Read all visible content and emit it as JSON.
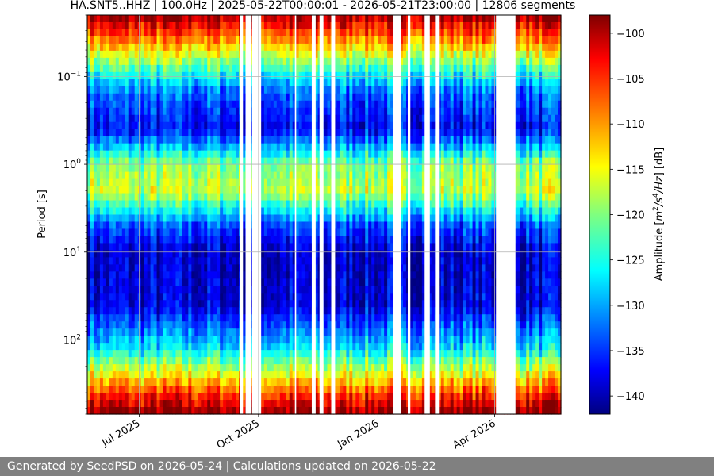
{
  "chart_data": {
    "type": "heatmap",
    "title": "HA.SNT5..HHZ | 100.0Hz | 2025-05-22T00:00:01 - 2026-05-21T23:00:00 | 12806 segments",
    "xlabel": "",
    "ylabel": "Period [s]",
    "x_range": [
      "2025-05-22",
      "2026-05-21"
    ],
    "x_ticks": [
      {
        "date": "2025-07-01",
        "label": "Jul 2025"
      },
      {
        "date": "2025-10-01",
        "label": "Oct 2025"
      },
      {
        "date": "2026-01-01",
        "label": "Jan 2026"
      },
      {
        "date": "2026-04-01",
        "label": "Apr 2026"
      }
    ],
    "y_scale": "log",
    "y_inverted": true,
    "y_range": [
      0.02,
      700
    ],
    "y_ticks": [
      {
        "value": 0.1,
        "base": "10",
        "exp": "−1"
      },
      {
        "value": 1,
        "base": "10",
        "exp": "0"
      },
      {
        "value": 10,
        "base": "10",
        "exp": "1"
      },
      {
        "value": 100,
        "base": "10",
        "exp": "2"
      }
    ],
    "grid": true,
    "colorbar": {
      "label_prefix": "Amplitude [",
      "label_math": "m",
      "label_exp1": "2",
      "label_mid": "/s",
      "label_exp2": "4",
      "label_den": "/Hz",
      "label_suffix": "] [dB]",
      "colormap": "jet",
      "min": -142,
      "max": -98,
      "ticks": [
        -100,
        -105,
        -110,
        -115,
        -120,
        -125,
        -130,
        -135,
        -140
      ],
      "tick_labels": [
        "−100",
        "−105",
        "−110",
        "−115",
        "−120",
        "−125",
        "−130",
        "−135",
        "−140"
      ]
    },
    "period_profile_db": [
      {
        "period": 0.02,
        "db": -99
      },
      {
        "period": 0.04,
        "db": -110
      },
      {
        "period": 0.07,
        "db": -120
      },
      {
        "period": 0.15,
        "db": -132
      },
      {
        "period": 0.4,
        "db": -137
      },
      {
        "period": 1.0,
        "db": -120
      },
      {
        "period": 2.0,
        "db": -117
      },
      {
        "period": 5.0,
        "db": -133
      },
      {
        "period": 10,
        "db": -139
      },
      {
        "period": 40,
        "db": -138
      },
      {
        "period": 120,
        "db": -127
      },
      {
        "period": 250,
        "db": -115
      },
      {
        "period": 400,
        "db": -106
      },
      {
        "period": 700,
        "db": -98
      }
    ],
    "data_gaps": [
      [
        "2025-09-17",
        "2025-09-19"
      ],
      [
        "2025-09-21",
        "2025-09-25"
      ],
      [
        "2025-09-26",
        "2025-10-03"
      ],
      [
        "2025-10-29",
        "2025-10-30"
      ],
      [
        "2025-11-11",
        "2025-11-14"
      ],
      [
        "2025-11-17",
        "2025-11-20"
      ],
      [
        "2025-11-26",
        "2025-11-29"
      ],
      [
        "2026-01-13",
        "2026-01-19"
      ],
      [
        "2026-01-24",
        "2026-01-26"
      ],
      [
        "2026-02-06",
        "2026-02-10"
      ],
      [
        "2026-02-14",
        "2026-02-17"
      ],
      [
        "2026-04-02",
        "2026-04-06"
      ],
      [
        "2026-04-06",
        "2026-04-17"
      ]
    ]
  },
  "footer": {
    "text": "Generated by SeedPSD on 2026-05-24 | Calculations updated on 2026-05-22"
  }
}
